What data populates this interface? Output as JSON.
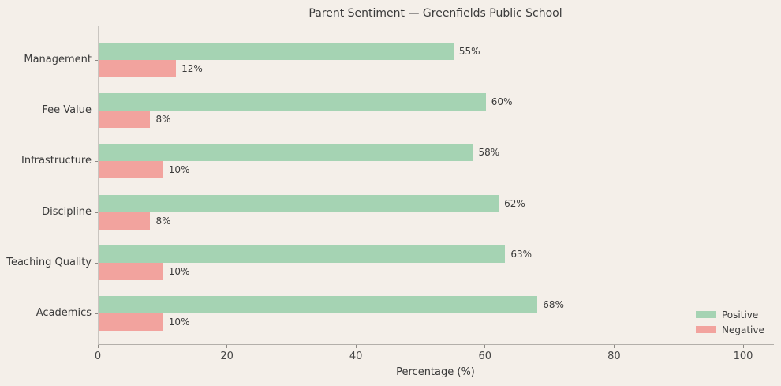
{
  "chart_data": {
    "type": "bar",
    "orientation": "horizontal",
    "title": "Parent Sentiment — Greenfields Public School",
    "xlabel": "Percentage (%)",
    "ylabel": "",
    "categories": [
      "Management",
      "Fee Value",
      "Infrastructure",
      "Discipline",
      "Teaching Quality",
      "Academics"
    ],
    "series": [
      {
        "name": "Positive",
        "color": "#a5d3b3",
        "values": [
          55,
          60,
          58,
          62,
          63,
          68
        ],
        "labels": [
          "55%",
          "60%",
          "58%",
          "62%",
          "63%",
          "68%"
        ]
      },
      {
        "name": "Negative",
        "color": "#f2a39e",
        "values": [
          12,
          8,
          10,
          8,
          10,
          10
        ],
        "labels": [
          "12%",
          "8%",
          "10%",
          "8%",
          "10%",
          "10%"
        ]
      }
    ],
    "xticks": [
      0,
      20,
      40,
      60,
      80,
      100
    ],
    "xlim": [
      0,
      104.6
    ],
    "grid": false,
    "legend_position": "lower right",
    "background_color": "#f4efe9",
    "text_color": "#3a3a3a",
    "axis_color": "#b3afaa"
  }
}
